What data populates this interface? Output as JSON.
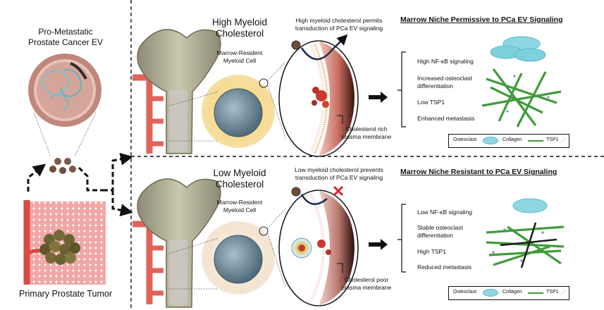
{
  "left": {
    "ev_title_line1": "Pro-Metastatic",
    "ev_title_line2": "Prostate Cancer EV",
    "tumor_title": "Primary Prostate Tumor"
  },
  "top": {
    "condition_line1": "High Myeloid",
    "condition_line2": "Cholesterol",
    "cell_label_line1": "Marrow-Resident",
    "cell_label_line2": "Myeloid Cell",
    "transduction_line1": "High myeloid cholesterol permits",
    "transduction_line2": "transduction of PCa EV signaling",
    "membrane_line1": "Cholesterol rich",
    "membrane_line2": "plasma membrane",
    "niche_title": "Marrow Niche Permissive to PCa EV Signaling",
    "outcomes": [
      "High NF-κB signaling",
      "Increased osteoclast",
      "differentiation",
      "Low TSP1",
      "Enhanced metastasis"
    ]
  },
  "bottom": {
    "condition_line1": "Low Myeloid",
    "condition_line2": "Cholesterol",
    "cell_label_line1": "Marrow-Resident",
    "cell_label_line2": "Myeloid Cell",
    "transduction_line1": "Low myeloid cholesterol prevents",
    "transduction_line2": "transduction of PCa EV signaling",
    "membrane_line1": "Cholesterol poor",
    "membrane_line2": "plasma membrane",
    "niche_title": "Marrow Niche Resistant to PCa EV Signaling",
    "outcomes": [
      "Low NF-κB signaling",
      "Stable osteoclast",
      "differentiation",
      "High TSP1",
      "Reduced metastasis"
    ]
  },
  "legend": {
    "osteoclast": "Osteoclast",
    "collagen": "Collagen",
    "tsp1": "TSP1"
  },
  "colors": {
    "bone": "#b7b59c",
    "vessel": "#e0645a",
    "cell_glow_high": "#f5d98c",
    "cell_glow_low": "#f3e3cf",
    "nucleus": "#6f8a9a",
    "osteoclast": "#7fd3e0",
    "collagen": "#3f9b3a",
    "tumor_grid": "#f0a0a0",
    "block_x": "#d9232a"
  }
}
